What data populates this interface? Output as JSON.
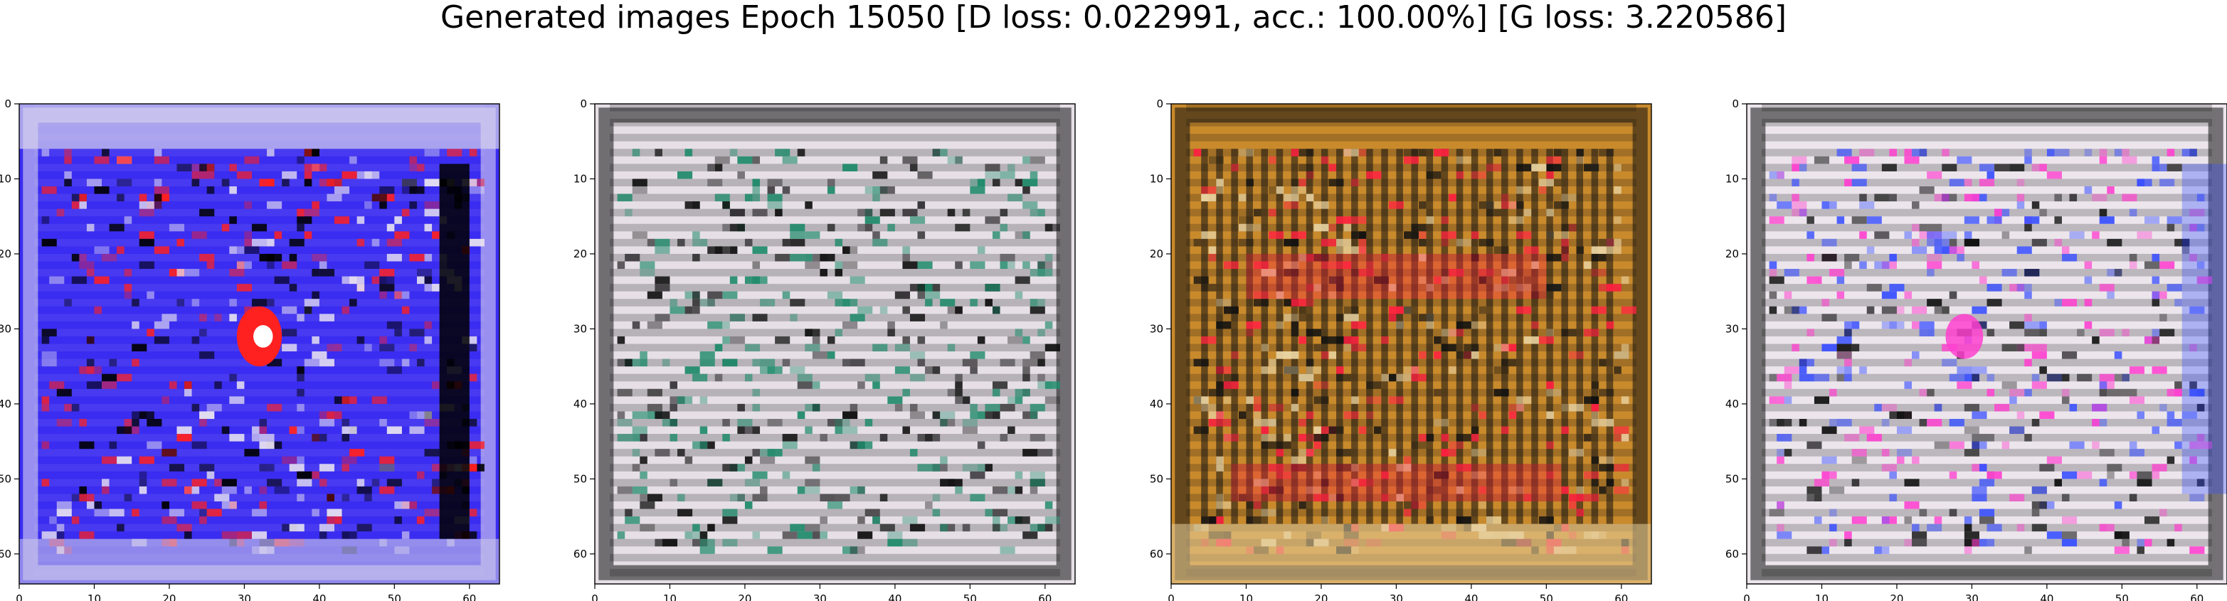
{
  "figure": {
    "suptitle": "Generated images Epoch 15050 [D loss: 0.022991, acc.: 100.00%] [G loss: 3.220586]"
  },
  "chart_data": [
    {
      "type": "heatmap",
      "title": "",
      "xlabel": "",
      "ylabel": "",
      "xlim": [
        0,
        64
      ],
      "ylim": [
        64,
        0
      ],
      "xticks": [
        0,
        10,
        20,
        30,
        40,
        50,
        60
      ],
      "yticks": [
        0,
        10,
        20,
        30,
        40,
        50,
        60
      ],
      "dominant_colors": [
        "#3a2cf0",
        "#e8e2f0",
        "#000000",
        "#ff2020"
      ]
    },
    {
      "type": "heatmap",
      "title": "",
      "xlabel": "",
      "ylabel": "",
      "xlim": [
        0,
        64
      ],
      "ylim": [
        64,
        0
      ],
      "xticks": [
        0,
        10,
        20,
        30,
        40,
        50,
        60
      ],
      "yticks": [
        0,
        10,
        20,
        30,
        40,
        50,
        60
      ],
      "dominant_colors": [
        "#e6dfe6",
        "#111111",
        "#1f8a6a"
      ]
    },
    {
      "type": "heatmap",
      "title": "",
      "xlabel": "",
      "ylabel": "",
      "xlim": [
        0,
        64
      ],
      "ylim": [
        64,
        0
      ],
      "xticks": [
        0,
        10,
        20,
        30,
        40,
        50,
        60
      ],
      "yticks": [
        0,
        10,
        20,
        30,
        40,
        50,
        60
      ],
      "dominant_colors": [
        "#c98a2c",
        "#111111",
        "#ff2040",
        "#e8d2a0"
      ]
    },
    {
      "type": "heatmap",
      "title": "",
      "xlabel": "",
      "ylabel": "",
      "xlim": [
        0,
        64
      ],
      "ylim": [
        64,
        0
      ],
      "xticks": [
        0,
        10,
        20,
        30,
        40,
        50,
        60
      ],
      "yticks": [
        0,
        10,
        20,
        30,
        40,
        50,
        60
      ],
      "dominant_colors": [
        "#ece6ec",
        "#111111",
        "#ff40d0",
        "#3a50ff"
      ]
    }
  ]
}
